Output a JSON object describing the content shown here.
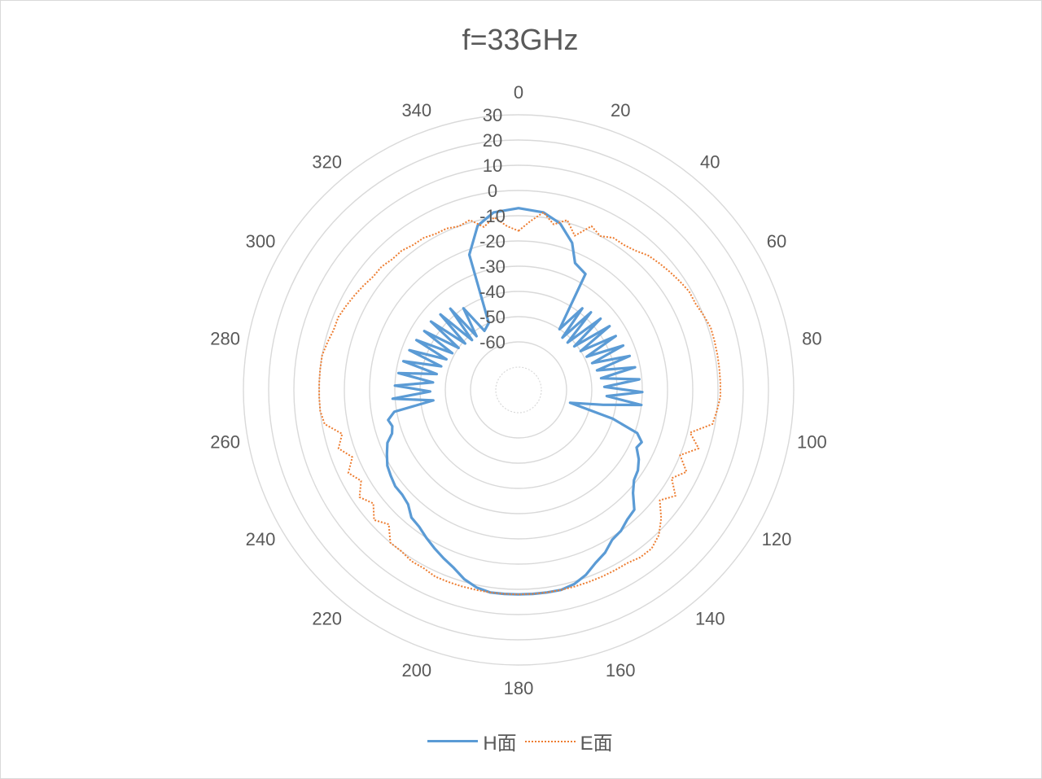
{
  "chart_data": {
    "type": "line",
    "subtype": "polar",
    "title": "f=33GHz",
    "angular_axis": {
      "labels": [
        "0",
        "20",
        "40",
        "60",
        "80",
        "100",
        "120",
        "140",
        "160",
        "180",
        "200",
        "220",
        "240",
        "260",
        "280",
        "300",
        "320",
        "340"
      ],
      "direction": "clockwise",
      "zero_at": "top"
    },
    "radial_axis": {
      "min": -70,
      "max": 30,
      "ticks": [
        30,
        20,
        10,
        0,
        -10,
        -20,
        -30,
        -40,
        -50,
        -60
      ],
      "tick_labels": [
        "30",
        "20",
        "10",
        "0",
        "-10",
        "-20",
        "-30",
        "-40",
        "-50",
        "-60"
      ]
    },
    "legend": {
      "placement": "bottom"
    },
    "series": [
      {
        "name": "H面",
        "color": "#5b9bd5",
        "style": "solid",
        "theta": [
          0,
          8,
          14,
          20,
          24,
          30,
          34,
          38,
          40,
          43,
          46,
          49,
          52,
          55,
          58,
          61,
          64,
          67,
          70,
          73,
          76,
          79,
          82,
          85,
          88,
          91,
          94,
          97,
          100,
          104,
          107,
          110,
          113,
          116,
          120,
          124,
          128,
          132,
          136,
          140,
          144,
          148,
          152,
          156,
          160,
          164,
          168,
          172,
          176,
          180,
          184,
          188,
          192,
          196,
          200,
          204,
          208,
          212,
          216,
          220,
          224,
          228,
          232,
          236,
          240,
          244,
          248,
          251,
          254,
          257,
          260,
          263,
          266,
          269,
          272,
          275,
          278,
          281,
          284,
          287,
          290,
          293,
          296,
          299,
          302,
          305,
          308,
          311,
          314,
          317,
          320,
          322,
          326,
          330,
          336,
          340,
          346,
          352,
          360
        ],
        "r": [
          -7,
          -8,
          -11,
          -17,
          -24,
          -26,
          -50,
          -38,
          -52,
          -37,
          -52,
          -36,
          -51,
          -35,
          -50,
          -35,
          -49,
          -34,
          -48,
          -33,
          -47,
          -32,
          -46,
          -31,
          -45,
          -30,
          -44,
          -30,
          -45,
          -58,
          -40,
          -29,
          -26,
          -27,
          -24,
          -22,
          -21,
          -18,
          -13,
          -12,
          -10,
          -9,
          -6,
          -4,
          -1,
          1,
          2,
          2,
          2,
          2,
          2,
          2,
          1,
          -1,
          -4,
          -6,
          -8,
          -10,
          -12,
          -13,
          -16,
          -17,
          -17,
          -18,
          -19,
          -21,
          -23,
          -26,
          -27,
          -26,
          -29,
          -45,
          -29,
          -44,
          -30,
          -45,
          -31,
          -46,
          -32,
          -47,
          -33,
          -48,
          -34,
          -49,
          -35,
          -50,
          -35,
          -51,
          -36,
          -52,
          -37,
          -52,
          -40,
          -52,
          -50,
          -22,
          -12,
          -8,
          -7
        ]
      },
      {
        "name": "E面",
        "color": "#ed7d31",
        "style": "dotted",
        "theta": [
          0,
          4,
          8,
          12,
          16,
          20,
          24,
          28,
          32,
          36,
          40,
          44,
          48,
          52,
          56,
          60,
          64,
          68,
          72,
          76,
          80,
          84,
          88,
          92,
          96,
          100,
          104,
          108,
          112,
          116,
          120,
          124,
          128,
          132,
          136,
          140,
          144,
          148,
          152,
          156,
          160,
          164,
          168,
          172,
          176,
          180,
          184,
          188,
          192,
          196,
          200,
          204,
          208,
          212,
          216,
          220,
          224,
          228,
          232,
          236,
          240,
          244,
          248,
          252,
          256,
          260,
          264,
          268,
          272,
          276,
          280,
          284,
          288,
          292,
          296,
          300,
          304,
          308,
          312,
          316,
          320,
          324,
          328,
          332,
          336,
          340,
          344,
          348,
          352,
          356,
          360
        ],
        "r": [
          -16,
          -12,
          -8,
          -12,
          -9,
          -14,
          -8,
          -10,
          -8,
          -8,
          -7,
          -5,
          -4,
          -3,
          -2,
          -1,
          -1,
          0,
          1,
          1,
          1,
          1,
          1,
          1,
          0,
          -1,
          -9,
          -4,
          -10,
          -5,
          -9,
          -4,
          -8,
          -3,
          1,
          3,
          3,
          2,
          2,
          2,
          2,
          2,
          2,
          2,
          2,
          2,
          2,
          2,
          2,
          2,
          2,
          2,
          1,
          1,
          0,
          0,
          -5,
          -2,
          -6,
          -3,
          -7,
          -4,
          -8,
          -4,
          -7,
          -1,
          0,
          0,
          0,
          0,
          0,
          -1,
          -2,
          -2,
          -3,
          -4,
          -5,
          -6,
          -6,
          -7,
          -7,
          -8,
          -8,
          -9,
          -9,
          -10,
          -9,
          -13,
          -10,
          -14,
          -16
        ]
      }
    ]
  }
}
